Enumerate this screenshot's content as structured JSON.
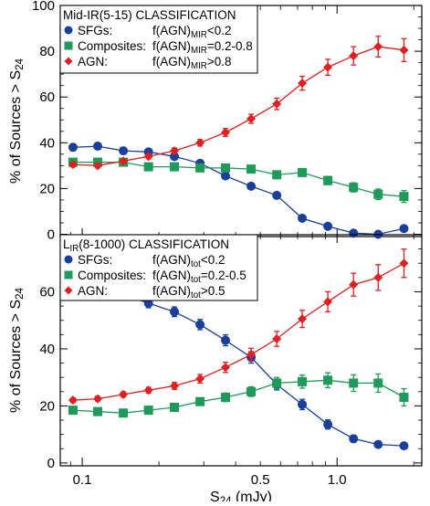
{
  "chart_data": [
    {
      "type": "line",
      "panel": "top",
      "title_parts": [
        "Mid-IR(5-15) CLASSIFICATION"
      ],
      "xlabel": "",
      "ylabel": [
        "% of Sources > S",
        "24"
      ],
      "xscale": "log",
      "xlim": [
        0.082,
        2.15
      ],
      "ylim": [
        -1,
        100
      ],
      "yticks": [
        0,
        20,
        40,
        60,
        80,
        100
      ],
      "xticks": [],
      "x": [
        0.092,
        0.115,
        0.145,
        0.182,
        0.23,
        0.29,
        0.365,
        0.46,
        0.58,
        0.73,
        0.92,
        1.16,
        1.45,
        1.83
      ],
      "series": [
        {
          "name": "SFGs",
          "color": "#1a3f9a",
          "marker": "circle",
          "values": [
            38,
            38.5,
            36.5,
            36,
            34,
            31,
            25.5,
            21,
            17,
            7,
            3.5,
            0.5,
            0,
            2.5
          ],
          "errors": [
            1.0,
            1.0,
            1.0,
            1.0,
            1.1,
            1.1,
            1.2,
            1.1,
            1.1,
            0.8,
            0.7,
            0.5,
            0.3,
            0.8
          ]
        },
        {
          "name": "Composites",
          "color": "#1f9a5a",
          "marker": "square",
          "values": [
            31.5,
            31.5,
            31.5,
            29.5,
            29.5,
            29,
            29,
            28.5,
            26,
            27,
            23.5,
            20.5,
            17.5,
            16.5
          ],
          "errors": [
            1.0,
            1.0,
            1.0,
            1.0,
            1.1,
            1.1,
            1.2,
            1.3,
            1.4,
            1.6,
            1.8,
            2.0,
            2.3,
            2.6
          ]
        },
        {
          "name": "AGN",
          "color": "#e02020",
          "marker": "diamond",
          "values": [
            30.5,
            30,
            32,
            34,
            36.5,
            40,
            44.5,
            50.5,
            57,
            66,
            73,
            78,
            82,
            80.5
          ],
          "errors": [
            1.0,
            1.0,
            1.0,
            1.0,
            1.2,
            1.4,
            1.7,
            2.0,
            2.5,
            3.0,
            3.5,
            4.0,
            4.5,
            5.0
          ]
        }
      ],
      "legend": {
        "placement": "top-left",
        "entries": [
          {
            "label": "SFGs:",
            "crit": "f(AGN)",
            "sub": "MIR",
            "cond": "<0.2"
          },
          {
            "label": "Composites:",
            "crit": "f(AGN)",
            "sub": "MIR",
            "cond": "=0.2-0.8"
          },
          {
            "label": "AGN:",
            "crit": "f(AGN)",
            "sub": "MIR",
            "cond": ">0.8"
          }
        ]
      }
    },
    {
      "type": "line",
      "panel": "bottom",
      "title_parts": [
        "L",
        "IR",
        "(8-1000) CLASSIFICATION"
      ],
      "xlabel": [
        "S",
        "24",
        " (mJy)"
      ],
      "ylabel": [
        "% of Sources > S",
        "24"
      ],
      "xscale": "log",
      "xlim": [
        0.082,
        2.15
      ],
      "ylim": [
        -1,
        80
      ],
      "yticks": [
        0,
        20,
        40,
        60
      ],
      "xticks": [
        {
          "value": 0.1,
          "label": "0.1"
        },
        {
          "value": 0.5,
          "label": "0.5"
        },
        {
          "value": 1.0,
          "label": "1.0"
        }
      ],
      "x": [
        0.092,
        0.115,
        0.145,
        0.182,
        0.23,
        0.29,
        0.365,
        0.46,
        0.58,
        0.73,
        0.92,
        1.16,
        1.45,
        1.83
      ],
      "series": [
        {
          "name": "SFGs",
          "color": "#1a3f9a",
          "marker": "circle",
          "values": [
            60,
            59.5,
            59,
            56,
            53,
            48.5,
            43,
            37,
            27.5,
            20.5,
            13.5,
            8.5,
            6.5,
            6
          ],
          "errors": [
            1.5,
            1.5,
            1.5,
            1.6,
            1.7,
            1.8,
            1.9,
            2.0,
            1.9,
            1.8,
            1.6,
            1.2,
            1.0,
            0.8
          ]
        },
        {
          "name": "Composites",
          "color": "#1f9a5a",
          "marker": "square",
          "values": [
            18.5,
            18,
            17.5,
            18.5,
            19.5,
            21.5,
            23,
            25,
            28,
            28.5,
            29,
            28,
            28,
            23
          ],
          "errors": [
            1.0,
            1.0,
            1.0,
            1.1,
            1.2,
            1.3,
            1.5,
            1.7,
            2.0,
            2.3,
            2.6,
            2.9,
            3.2,
            3.0
          ]
        },
        {
          "name": "AGN",
          "color": "#e02020",
          "marker": "diamond",
          "values": [
            22,
            22.5,
            24,
            25.5,
            27,
            29.5,
            33.5,
            38,
            43.5,
            50.5,
            56.5,
            62.5,
            65,
            70
          ],
          "errors": [
            0.8,
            0.8,
            0.9,
            1.0,
            1.2,
            1.5,
            1.8,
            2.2,
            2.6,
            3.0,
            3.5,
            4.0,
            4.5,
            5.0
          ]
        }
      ],
      "legend": {
        "placement": "top-left",
        "entries": [
          {
            "label": "SFGs:",
            "crit": "f(AGN)",
            "sub": "tot",
            "cond": "<0.2"
          },
          {
            "label": "Composites:",
            "crit": "f(AGN)",
            "sub": "tot",
            "cond": "=0.2-0.5"
          },
          {
            "label": "AGN:",
            "crit": "f(AGN)",
            "sub": "tot",
            "cond": ">0.5"
          }
        ]
      }
    }
  ]
}
